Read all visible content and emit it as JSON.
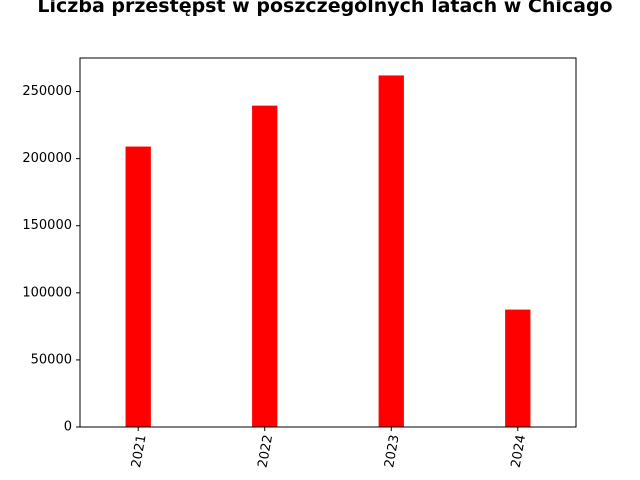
{
  "chart_data": {
    "type": "bar",
    "title": "Liczba przestępst w poszczególnych latach w Chicago",
    "xlabel": "",
    "ylabel": "",
    "categories": [
      "2021",
      "2022",
      "2023",
      "2024"
    ],
    "values": [
      209000,
      239500,
      262000,
      87500
    ],
    "ylim": [
      0,
      275000
    ],
    "yticks": [
      0,
      50000,
      100000,
      150000,
      200000,
      250000
    ],
    "ytick_labels": [
      "0",
      "50000",
      "100000",
      "150000",
      "200000",
      "250000"
    ],
    "bar_color": "#ff0000",
    "grid": false,
    "legend": "none"
  }
}
